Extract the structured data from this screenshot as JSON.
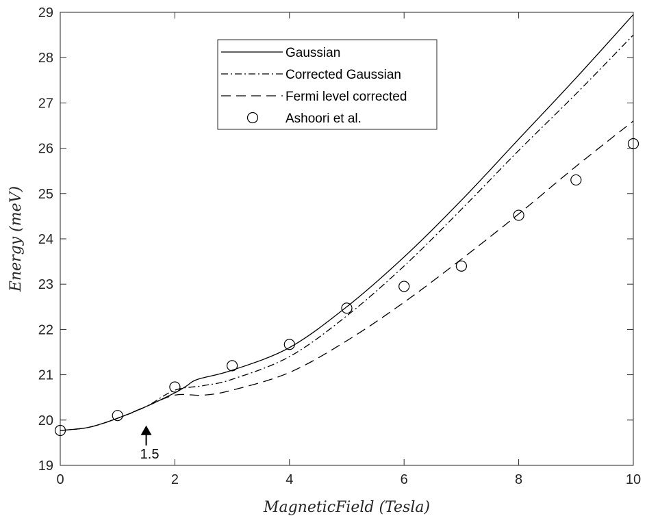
{
  "chart_data": {
    "type": "line",
    "xlabel": "MagneticField (Tesla)",
    "ylabel": "Energy (meV)",
    "xlim": [
      0,
      10
    ],
    "ylim": [
      19,
      29
    ],
    "xticks": [
      0,
      2,
      4,
      6,
      8,
      10
    ],
    "yticks": [
      19,
      20,
      21,
      22,
      23,
      24,
      25,
      26,
      27,
      28,
      29
    ],
    "grid": false,
    "legend_position": "top-center",
    "series": [
      {
        "name": "Gaussian",
        "style": "solid",
        "color": "#000000",
        "x": [
          0,
          0.5,
          1,
          1.5,
          2,
          2.2,
          2.4,
          3,
          4,
          5,
          6,
          7,
          8,
          9,
          10
        ],
        "y": [
          19.77,
          19.84,
          20.04,
          20.3,
          20.6,
          20.75,
          20.9,
          21.1,
          21.6,
          22.5,
          23.6,
          24.85,
          26.2,
          27.55,
          28.95
        ]
      },
      {
        "name": "Corrected Gaussian",
        "style": "dashdot",
        "color": "#000000",
        "x": [
          0,
          0.5,
          1,
          1.5,
          2,
          2.5,
          3,
          4,
          5,
          6,
          7,
          8,
          9,
          10
        ],
        "y": [
          19.77,
          19.84,
          20.04,
          20.3,
          20.66,
          20.76,
          20.9,
          21.4,
          22.3,
          23.4,
          24.65,
          25.95,
          27.2,
          28.5
        ]
      },
      {
        "name": "Fermi level corrected",
        "style": "dashed",
        "color": "#000000",
        "x": [
          0,
          0.5,
          1,
          1.5,
          2,
          2.5,
          3,
          4,
          5,
          6,
          7,
          8,
          9,
          10
        ],
        "y": [
          19.77,
          19.84,
          20.04,
          20.3,
          20.55,
          20.55,
          20.66,
          21.05,
          21.75,
          22.6,
          23.55,
          24.55,
          25.6,
          26.6
        ]
      },
      {
        "name": "Ashoori et al.",
        "style": "markers",
        "marker": "circle",
        "color": "#000000",
        "x": [
          0,
          1,
          2,
          3,
          4,
          5,
          6,
          7,
          8,
          9,
          10
        ],
        "y": [
          19.77,
          20.1,
          20.73,
          21.2,
          21.67,
          22.47,
          22.95,
          23.4,
          24.52,
          25.3,
          26.1
        ]
      }
    ],
    "annotations": [
      {
        "text": "1.5",
        "x": 1.5,
        "arrow": "up"
      }
    ]
  }
}
